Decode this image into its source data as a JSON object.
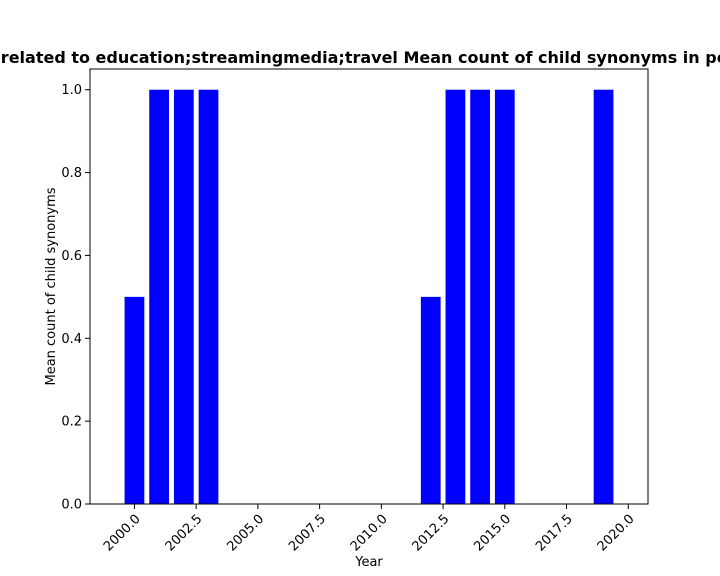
{
  "chart_data": {
    "type": "bar",
    "title": "Nodes related to education;streamingmedia;travel Mean count of child synonyms in per year",
    "xlabel": "Year",
    "ylabel": "Mean count of child synonyms",
    "x": [
      2000,
      2001,
      2002,
      2003,
      2012,
      2013,
      2014,
      2015,
      2019
    ],
    "values": [
      0.5,
      1.0,
      1.0,
      1.0,
      0.5,
      1.0,
      1.0,
      1.0,
      1.0
    ],
    "bar_width": 0.8,
    "xlim": [
      1998.2,
      2020.8
    ],
    "ylim": [
      0,
      1.05
    ],
    "x_ticks": [
      2000.0,
      2002.5,
      2005.0,
      2007.5,
      2010.0,
      2012.5,
      2015.0,
      2017.5,
      2020.0
    ],
    "x_tick_labels": [
      "2000.0",
      "2002.5",
      "2005.0",
      "2007.5",
      "2010.0",
      "2012.5",
      "2015.0",
      "2017.5",
      "2020.0"
    ],
    "y_ticks": [
      0.0,
      0.2,
      0.4,
      0.6,
      0.8,
      1.0
    ],
    "y_tick_labels": [
      "0.0",
      "0.2",
      "0.4",
      "0.6",
      "0.8",
      "1.0"
    ],
    "bar_color": "#0000ff",
    "grid": false,
    "legend": "none"
  }
}
